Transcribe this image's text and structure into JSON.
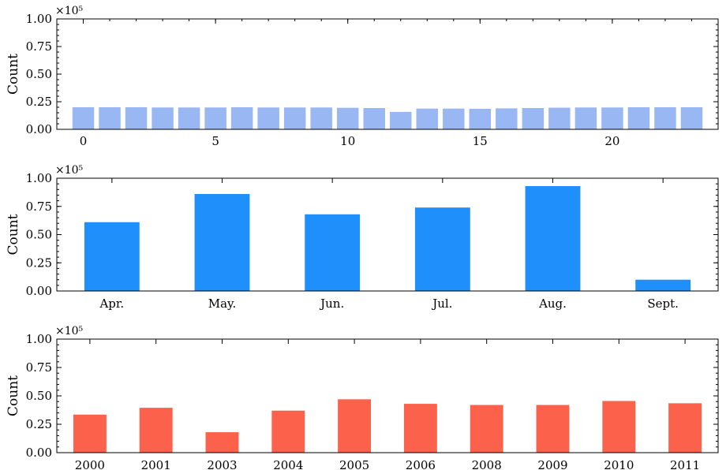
{
  "chart_data": [
    {
      "type": "bar",
      "title": "",
      "xlabel": "",
      "ylabel": "Count",
      "y_multiplier": "×10⁵",
      "color": "#99b7f3",
      "x": [
        0,
        1,
        2,
        3,
        4,
        5,
        6,
        7,
        8,
        9,
        10,
        11,
        12,
        13,
        14,
        15,
        16,
        17,
        18,
        19,
        20,
        21,
        22,
        23
      ],
      "values": [
        0.2,
        0.2,
        0.2,
        0.198,
        0.198,
        0.198,
        0.2,
        0.198,
        0.198,
        0.198,
        0.195,
        0.193,
        0.158,
        0.188,
        0.188,
        0.186,
        0.19,
        0.193,
        0.196,
        0.198,
        0.198,
        0.2,
        0.2,
        0.2
      ],
      "xticks": [
        "0",
        "5",
        "10",
        "15",
        "20"
      ],
      "xtick_values": [
        0,
        5,
        10,
        15,
        20
      ],
      "xlim": [
        -1,
        24
      ],
      "ylim": [
        0,
        1.0
      ],
      "yticks": [
        "0.00",
        "0.25",
        "0.50",
        "0.75",
        "1.00"
      ],
      "grid": false
    },
    {
      "type": "bar",
      "title": "",
      "xlabel": "",
      "ylabel": "Count",
      "y_multiplier": "×10⁵",
      "color": "#1f8ffb",
      "categories": [
        "Apr.",
        "May.",
        "Jun.",
        "Jul.",
        "Aug.",
        "Sept."
      ],
      "values": [
        0.61,
        0.86,
        0.68,
        0.74,
        0.93,
        0.1
      ],
      "ylim": [
        0,
        1.0
      ],
      "yticks": [
        "0.00",
        "0.25",
        "0.50",
        "0.75",
        "1.00"
      ],
      "grid": false
    },
    {
      "type": "bar",
      "title": "",
      "xlabel": "",
      "ylabel": "Count",
      "y_multiplier": "×10⁵",
      "color": "#fc614c",
      "categories": [
        "2000",
        "2001",
        "2003",
        "2004",
        "2005",
        "2006",
        "2008",
        "2009",
        "2010",
        "2011"
      ],
      "values": [
        0.335,
        0.395,
        0.18,
        0.37,
        0.47,
        0.43,
        0.42,
        0.42,
        0.455,
        0.435
      ],
      "ylim": [
        0,
        1.0
      ],
      "yticks": [
        "0.00",
        "0.25",
        "0.50",
        "0.75",
        "1.00"
      ],
      "grid": false
    }
  ]
}
